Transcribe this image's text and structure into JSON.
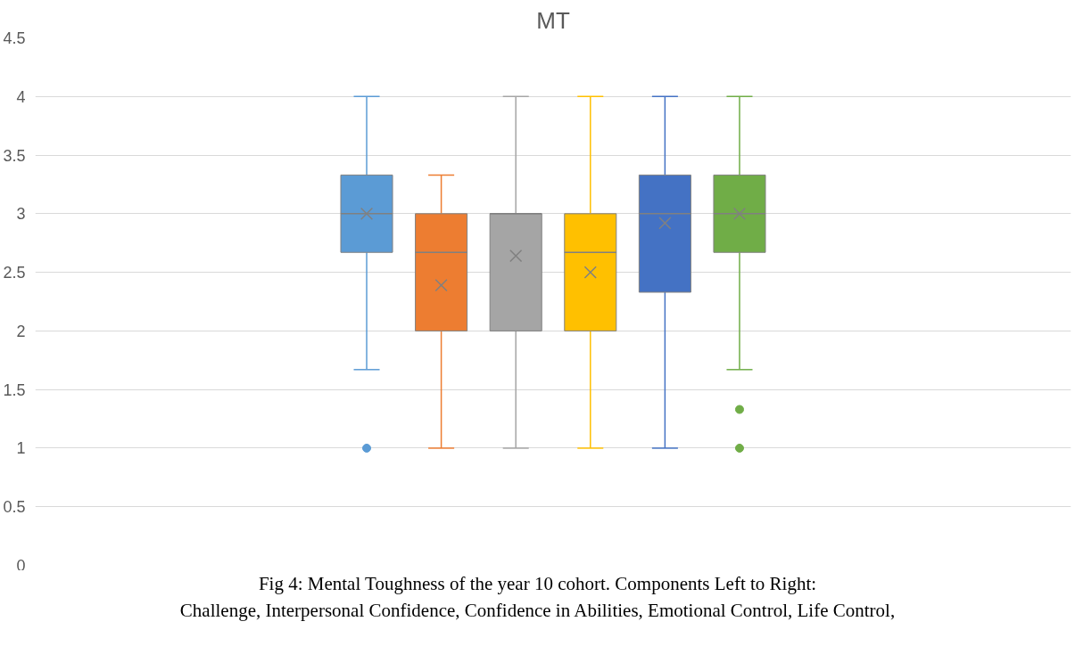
{
  "chart_data": {
    "type": "box",
    "title": "MT",
    "categories": [
      null
    ],
    "ylim": [
      0,
      4.5
    ],
    "yticks": [
      0,
      0.5,
      1,
      1.5,
      2,
      2.5,
      3,
      3.5,
      4,
      4.5
    ],
    "grid": "y",
    "series": [
      {
        "color": "#5b9bd5",
        "boxes": [
          {
            "low": 1.67,
            "q1": 2.67,
            "median": 3,
            "q3": 3.33,
            "high": 4,
            "mean": 3,
            "outliers": [
              1
            ]
          }
        ]
      },
      {
        "color": "#ed7d31",
        "boxes": [
          {
            "low": 1,
            "q1": 2,
            "median": 2.67,
            "q3": 3,
            "high": 3.33,
            "mean": 2.39
          }
        ]
      },
      {
        "color": "#a5a5a5",
        "boxes": [
          {
            "low": 1,
            "q1": 2,
            "median": 3,
            "q3": 3,
            "high": 4,
            "mean": 2.64
          }
        ]
      },
      {
        "color": "#ffc000",
        "boxes": [
          {
            "low": 1,
            "q1": 2,
            "median": 2.67,
            "q3": 3,
            "high": 4,
            "mean": 2.5
          }
        ]
      },
      {
        "color": "#4472c4",
        "boxes": [
          {
            "low": 1,
            "q1": 2.33,
            "median": 3,
            "q3": 3.33,
            "high": 4,
            "mean": 2.92
          }
        ]
      },
      {
        "color": "#70ad47",
        "boxes": [
          {
            "low": 1.67,
            "q1": 2.67,
            "median": 3,
            "q3": 3.33,
            "high": 4,
            "mean": 3,
            "outliers": [
              1,
              1.33
            ]
          }
        ]
      }
    ],
    "annotations": [
      "Fig 4: Mental Toughness of the year 10 cohort. Components Left to Right:",
      "Challenge, Interpersonal Confidence, Confidence in Abilities, Emotional Control, Life Control,"
    ]
  }
}
